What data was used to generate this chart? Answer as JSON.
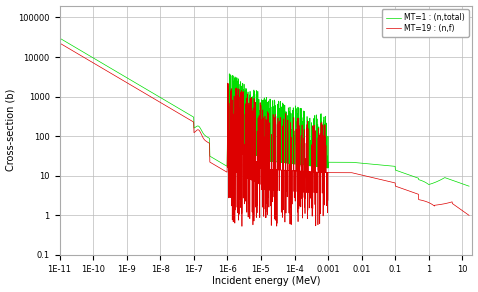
{
  "title": "",
  "xlabel": "Incident energy (MeV)",
  "ylabel": "Cross-section (b)",
  "legend": [
    {
      "label": "MT=1 : (n,total)",
      "color": "#00dd00"
    },
    {
      "label": "MT=19 : (n,f)",
      "color": "#dd0000"
    }
  ],
  "background_color": "#ffffff",
  "grid_color": "#bbbbbb",
  "xtick_labels": [
    "1E-11",
    "1E-10",
    "1E-9",
    "1E-8",
    "1E-7",
    "1E-6",
    "1E-5",
    "1E-4",
    "0.001",
    "0.01",
    "0.1",
    "1",
    "10"
  ],
  "xtick_values": [
    1e-11,
    1e-10,
    1e-09,
    1e-08,
    1e-07,
    1e-06,
    1e-05,
    0.0001,
    0.001,
    0.01,
    0.1,
    1,
    10
  ],
  "ytick_labels": [
    "0.1",
    "1",
    "10",
    "100",
    "1000",
    "10000",
    "100000"
  ],
  "ytick_values": [
    0.1,
    1,
    10,
    100,
    1000,
    10000,
    100000
  ],
  "xlim": [
    1e-11,
    20
  ],
  "ylim": [
    0.1,
    200000
  ]
}
